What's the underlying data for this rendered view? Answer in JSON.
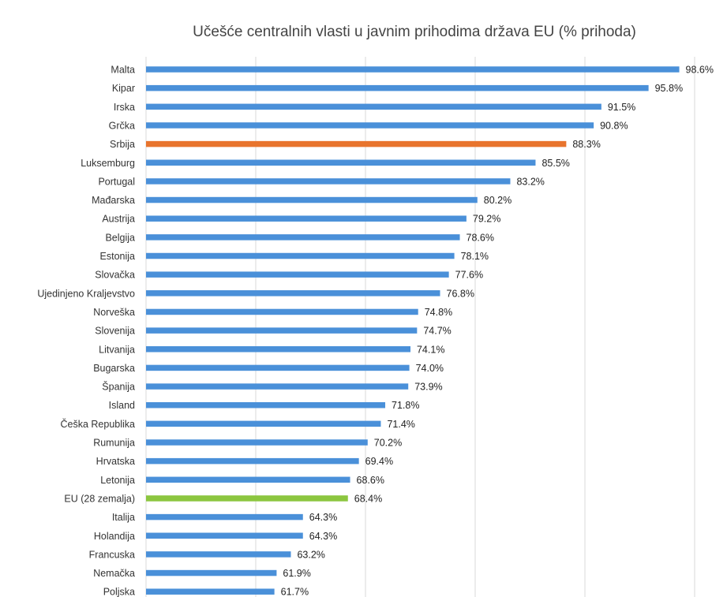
{
  "chart_data": {
    "type": "bar",
    "orientation": "horizontal",
    "title": "Učešće centralnih vlasti u javnim prihodima država EU (% prihoda)",
    "xlabel": "",
    "ylabel": "",
    "xlim": [
      50,
      100
    ],
    "grid": true,
    "legend": "none",
    "value_suffix": "%",
    "colors": {
      "default": "#4a90d9",
      "highlight_serbia": "#e8742d",
      "highlight_eu": "#8cc63f"
    },
    "categories": [
      "Malta",
      "Kipar",
      "Irska",
      "Grčka",
      "Srbija",
      "Luksemburg",
      "Portugal",
      "Mađarska",
      "Austrija",
      "Belgija",
      "Estonija",
      "Slovačka",
      "Ujedinjeno Kraljevstvo",
      "Norveška",
      "Slovenija",
      "Litvanija",
      "Bugarska",
      "Španija",
      "Island",
      "Češka Republika",
      "Rumunija",
      "Hrvatska",
      "Letonija",
      "EU (28 zemalja)",
      "Italija",
      "Holandija",
      "Francuska",
      "Nemačka",
      "Poljska"
    ],
    "values": [
      98.6,
      95.8,
      91.5,
      90.8,
      88.3,
      85.5,
      83.2,
      80.2,
      79.2,
      78.6,
      78.1,
      77.6,
      76.8,
      74.8,
      74.7,
      74.1,
      74.0,
      73.9,
      71.8,
      71.4,
      70.2,
      69.4,
      68.6,
      68.4,
      64.3,
      64.3,
      63.2,
      61.9,
      61.7
    ],
    "value_labels": [
      "98.6%",
      "95.8%",
      "91.5%",
      "90.8%",
      "88.3%",
      "85.5%",
      "83.2%",
      "80.2%",
      "79.2%",
      "78.6%",
      "78.1%",
      "77.6%",
      "76.8%",
      "74.8%",
      "74.7%",
      "74.1%",
      "74.0%",
      "73.9%",
      "71.8%",
      "71.4%",
      "70.2%",
      "69.4%",
      "68.6%",
      "68.4%",
      "64.3%",
      "64.3%",
      "63.2%",
      "61.9%",
      "61.7%"
    ],
    "bar_colors": [
      "default",
      "default",
      "default",
      "default",
      "highlight_serbia",
      "default",
      "default",
      "default",
      "default",
      "default",
      "default",
      "default",
      "default",
      "default",
      "default",
      "default",
      "default",
      "default",
      "default",
      "default",
      "default",
      "default",
      "default",
      "highlight_eu",
      "default",
      "default",
      "default",
      "default",
      "default"
    ]
  }
}
